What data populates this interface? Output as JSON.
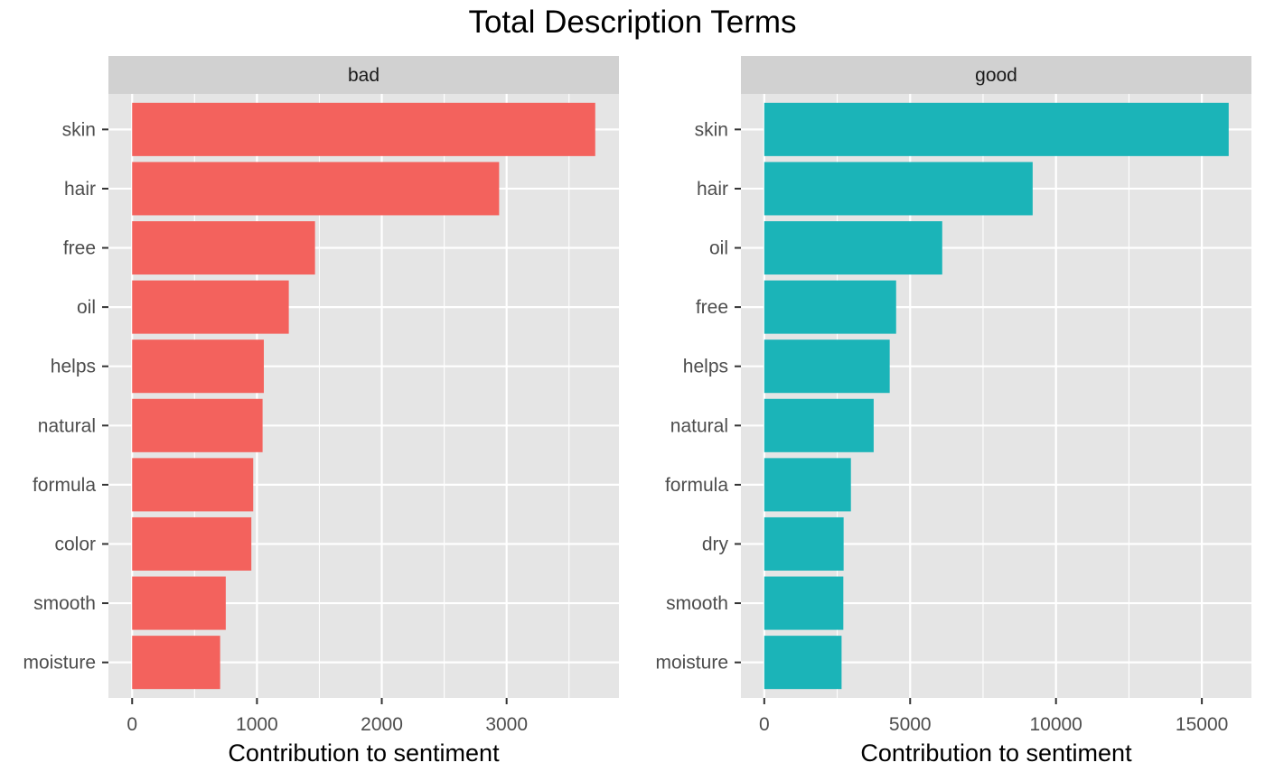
{
  "chart_data": {
    "type": "bar",
    "orientation": "horizontal",
    "title": "Total Description Terms",
    "colors": {
      "bad": "#f3625d",
      "good": "#1bb4b8",
      "panel_background": "#e5e5e5",
      "strip_background": "#d1d1d1",
      "grid": "#ffffff"
    },
    "grid": true,
    "legend": "none",
    "panels": [
      {
        "facet": "bad",
        "color": "#f3625d",
        "xlabel": "Contribution to sentiment",
        "xlim": [
          -190,
          3900
        ],
        "x_ticks": [
          0,
          1000,
          2000,
          3000
        ],
        "x_tick_labels": [
          "0",
          "1000",
          "2000",
          "3000"
        ],
        "x_minor_ticks": [
          500,
          1500,
          2500,
          3500
        ],
        "categories": [
          "skin",
          "hair",
          "free",
          "oil",
          "helps",
          "natural",
          "formula",
          "color",
          "smooth",
          "moisture"
        ],
        "values": [
          3710,
          2940,
          1465,
          1255,
          1055,
          1045,
          970,
          955,
          750,
          705
        ]
      },
      {
        "facet": "good",
        "color": "#1bb4b8",
        "xlabel": "Contribution to sentiment",
        "xlim": [
          -800,
          16700
        ],
        "x_ticks": [
          0,
          5000,
          10000,
          15000
        ],
        "x_tick_labels": [
          "0",
          "5000",
          "10000",
          "15000"
        ],
        "x_minor_ticks": [
          2500,
          7500,
          12500
        ],
        "categories": [
          "skin",
          "hair",
          "oil",
          "free",
          "helps",
          "natural",
          "formula",
          "dry",
          "smooth",
          "moisture"
        ],
        "values": [
          15920,
          9200,
          6100,
          4520,
          4300,
          3750,
          2970,
          2720,
          2710,
          2650
        ]
      }
    ]
  }
}
